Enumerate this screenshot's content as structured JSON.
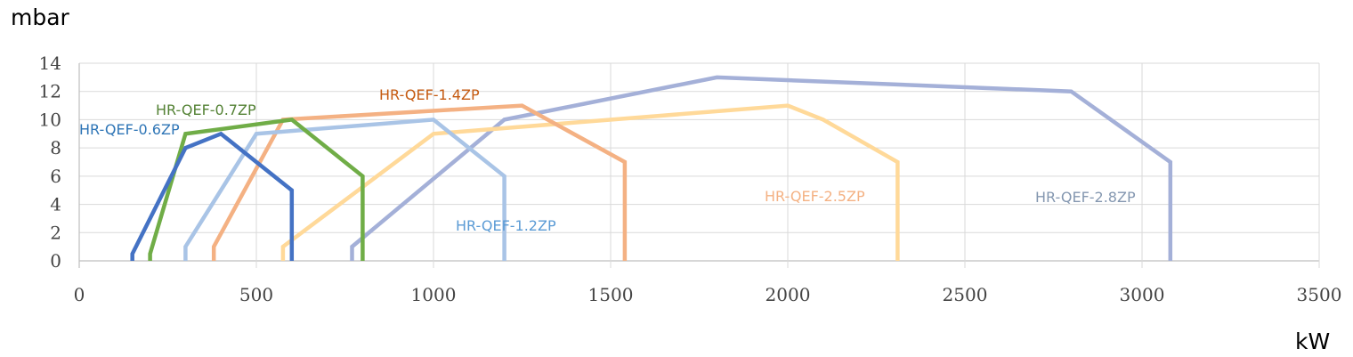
{
  "chart_data": {
    "type": "line",
    "title": "",
    "ylabel": "mbar",
    "xlabel": "kW",
    "xlim": [
      0,
      3500
    ],
    "ylim": [
      0,
      14
    ],
    "x_ticks": [
      0,
      500,
      1000,
      1500,
      2000,
      2500,
      3000,
      3500
    ],
    "y_ticks": [
      0,
      2,
      4,
      6,
      8,
      10,
      12,
      14
    ],
    "grid": true,
    "legend": "inline labels",
    "series": [
      {
        "name": "HR-QEF-0.6ZP",
        "color": "#4472c4",
        "label_color": "#2e75b6",
        "points": [
          [
            150,
            0
          ],
          [
            150,
            0.5
          ],
          [
            300,
            8
          ],
          [
            400,
            9
          ],
          [
            600,
            5
          ],
          [
            600,
            0
          ]
        ]
      },
      {
        "name": "HR-QEF-0.7ZP",
        "color": "#70ad47",
        "label_color": "#548235",
        "points": [
          [
            200,
            0
          ],
          [
            200,
            0.5
          ],
          [
            300,
            9
          ],
          [
            600,
            10
          ],
          [
            800,
            6
          ],
          [
            800,
            0
          ]
        ]
      },
      {
        "name": "HR-QEF-1.2ZP",
        "color": "#a9c4e6",
        "label_color": "#5b9bd5",
        "points": [
          [
            300,
            0
          ],
          [
            300,
            1
          ],
          [
            500,
            9
          ],
          [
            1000,
            10
          ],
          [
            1200,
            6
          ],
          [
            1200,
            0
          ]
        ]
      },
      {
        "name": "HR-QEF-1.4ZP",
        "color": "#f4b183",
        "label_color": "#c55a11",
        "points": [
          [
            380,
            0
          ],
          [
            380,
            1
          ],
          [
            575,
            10
          ],
          [
            1250,
            11
          ],
          [
            1540,
            7
          ],
          [
            1540,
            0
          ]
        ]
      },
      {
        "name": "HR-QEF-2.5ZP",
        "color": "#ffd999",
        "label_color": "#f4b183",
        "points": [
          [
            575,
            0
          ],
          [
            575,
            1
          ],
          [
            1000,
            9
          ],
          [
            2000,
            11
          ],
          [
            2100,
            10
          ],
          [
            2310,
            7
          ],
          [
            2310,
            0
          ]
        ]
      },
      {
        "name": "HR-QEF-2.8ZP",
        "color": "#a4b0d8",
        "label_color": "#8497b0",
        "points": [
          [
            770,
            0
          ],
          [
            770,
            1
          ],
          [
            1200,
            10
          ],
          [
            1800,
            13
          ],
          [
            2800,
            12
          ],
          [
            3080,
            7
          ],
          [
            3080,
            0
          ]
        ]
      }
    ]
  }
}
